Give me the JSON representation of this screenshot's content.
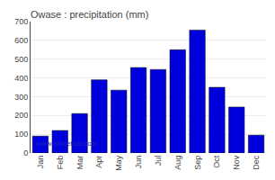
{
  "chart_data": {
    "type": "bar",
    "title": "Owase : precipitation (mm)",
    "categories": [
      "Jan",
      "Feb",
      "Mar",
      "Apr",
      "May",
      "Jun",
      "Jul",
      "Aug",
      "Sep",
      "Oct",
      "Nov",
      "Dec"
    ],
    "values": [
      90,
      120,
      210,
      390,
      335,
      455,
      445,
      550,
      655,
      350,
      245,
      95
    ],
    "color": "#0000dd",
    "ylim": [
      0,
      700
    ],
    "yticks": [
      0,
      100,
      200,
      300,
      400,
      500,
      600,
      700
    ],
    "grid": true,
    "annotations": [
      "www.allmetsat.com"
    ]
  }
}
